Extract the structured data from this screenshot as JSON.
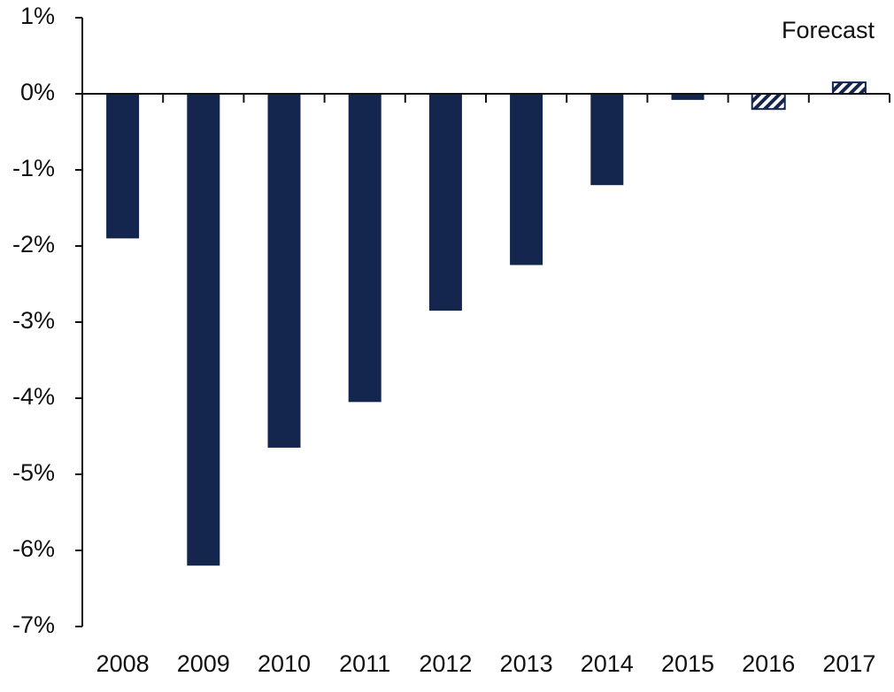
{
  "chart_data": {
    "type": "bar",
    "annotation": "Forecast",
    "categories": [
      "2008",
      "2009",
      "2010",
      "2011",
      "2012",
      "2013",
      "2014",
      "2015",
      "2016",
      "2017"
    ],
    "values": [
      -1.9,
      -6.2,
      -4.65,
      -4.05,
      -2.85,
      -2.25,
      -1.2,
      -0.08,
      -0.2,
      0.15
    ],
    "hatched": [
      false,
      false,
      false,
      false,
      false,
      false,
      false,
      false,
      true,
      true
    ],
    "color": "#14264d",
    "ylim": [
      -7,
      1
    ],
    "yticks": [
      {
        "value": 1,
        "label": "1%"
      },
      {
        "value": 0,
        "label": "0%"
      },
      {
        "value": -1,
        "label": "-1%"
      },
      {
        "value": -2,
        "label": "-2%"
      },
      {
        "value": -3,
        "label": "-3%"
      },
      {
        "value": -4,
        "label": "-4%"
      },
      {
        "value": -5,
        "label": "-5%"
      },
      {
        "value": -6,
        "label": "-6%"
      },
      {
        "value": -7,
        "label": "-7%"
      }
    ],
    "grid": false
  }
}
